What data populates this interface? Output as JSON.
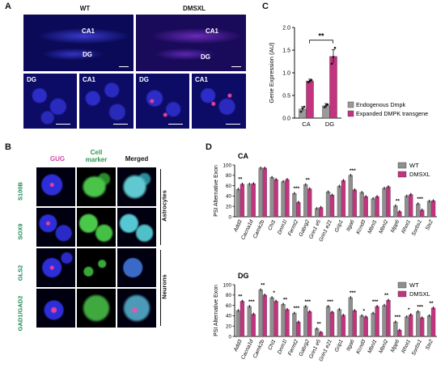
{
  "panel_a": {
    "letter": "A",
    "wt_label": "WT",
    "dmsxl_label": "DMSXL",
    "region_ca1": "CA1",
    "region_dg": "DG"
  },
  "panel_b": {
    "letter": "B",
    "col_gug": "GUG",
    "col_marker": "Cell\nmarker",
    "col_merged": "Merged",
    "rows": [
      "S100B",
      "SOX9",
      "GLS2",
      "GAD1/GAD2"
    ],
    "group_astro": "Astrocytes",
    "group_neuron": "Neurons"
  },
  "panel_c": {
    "letter": "C"
  },
  "panel_d": {
    "letter": "D"
  },
  "chart_data": [
    {
      "type": "bar",
      "panel": "C",
      "ylabel": "Gene Expression (AU)",
      "ylim": [
        0,
        2.0
      ],
      "yticks": [
        "0.0",
        "0.5",
        "1.0",
        "1.5",
        "2.0"
      ],
      "categories": [
        "CA",
        "DG"
      ],
      "series": [
        {
          "name": "Endogenous Dmpk",
          "color": "#9a9a9a",
          "values": [
            0.2,
            0.27
          ],
          "errors": [
            0.05,
            0.05
          ]
        },
        {
          "name": "Expanded DMPK transgene",
          "color": "#c2347f",
          "values": [
            0.82,
            1.36
          ],
          "errors": [
            0.04,
            0.15
          ]
        }
      ],
      "annotation": "**",
      "legend": "right"
    },
    {
      "type": "bar",
      "panel": "D",
      "title": "CA",
      "ylabel": "PSI Alternative Exon",
      "ylim": [
        0,
        100
      ],
      "yticks": [
        "0",
        "20",
        "40",
        "60",
        "80",
        "100"
      ],
      "categories": [
        "Add3",
        "Cacna1d",
        "Camk2b",
        "Chl1",
        "Dnm1l",
        "Fermt2",
        "Gabrg2",
        "Grin1 e5",
        "Grin1 e21",
        "Grip1",
        "Itga6",
        "Kcnd3",
        "Mbnl1",
        "Mbnl2",
        "Mpp6",
        "Rhot1",
        "Sorbs1",
        "Stx2"
      ],
      "series": [
        {
          "name": "WT",
          "color": "#8f8f8f",
          "values": [
            53,
            63,
            94,
            76,
            68,
            45,
            62,
            16,
            48,
            59,
            80,
            47,
            35,
            55,
            21,
            40,
            25,
            30
          ]
        },
        {
          "name": "DMSXL",
          "color": "#c2347f",
          "values": [
            63,
            64,
            94,
            72,
            72,
            28,
            54,
            18,
            42,
            70,
            52,
            39,
            39,
            58,
            10,
            43,
            13,
            31
          ]
        }
      ],
      "significance": [
        "**",
        "",
        "",
        "",
        "",
        "***",
        "**",
        "",
        "",
        "",
        "***",
        "",
        "",
        "",
        "**",
        "",
        "***",
        ""
      ],
      "legend": "top-right"
    },
    {
      "type": "bar",
      "panel": "D",
      "title": "DG",
      "ylabel": "PSI Alternative Exon",
      "ylim": [
        0,
        100
      ],
      "yticks": [
        "0",
        "20",
        "40",
        "60",
        "80",
        "100"
      ],
      "categories": [
        "Add3",
        "Cacna1d",
        "Camk2b",
        "Chl1",
        "Dnm1l",
        "Fermt2",
        "Gabrg2",
        "Grin1 e5",
        "Grin1 e21",
        "Grip1",
        "Itga6",
        "Kcnd3",
        "Mbnl1",
        "Mbnl2",
        "Mpp6",
        "Rhot1",
        "Sorbs1",
        "Stx2"
      ],
      "series": [
        {
          "name": "WT",
          "color": "#8f8f8f",
          "values": [
            50,
            58,
            90,
            75,
            62,
            45,
            58,
            15,
            58,
            52,
            75,
            40,
            45,
            60,
            28,
            38,
            48,
            40
          ]
        },
        {
          "name": "DMSXL",
          "color": "#c2347f",
          "values": [
            68,
            43,
            80,
            68,
            52,
            28,
            48,
            8,
            47,
            41,
            50,
            38,
            58,
            70,
            12,
            42,
            36,
            55
          ]
        }
      ],
      "significance": [
        "**",
        "***",
        "**",
        "*",
        "**",
        "***",
        "***",
        "**",
        "***",
        "",
        "***",
        "*",
        "***",
        "**",
        "***",
        "*",
        "***",
        "**"
      ],
      "legend": "top-right"
    }
  ]
}
